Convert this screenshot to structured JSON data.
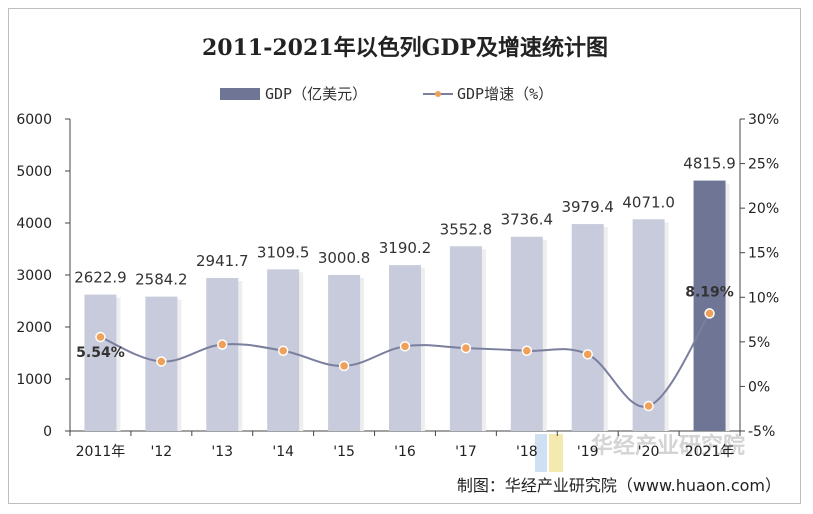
{
  "chart_data": {
    "type": "bar",
    "title": "2011-2021年以色列GDP及增速统计图",
    "categories": [
      "2011年",
      "'12",
      "'13",
      "'14",
      "'15",
      "'16",
      "'17",
      "'18",
      "'19",
      "'20",
      "2021年"
    ],
    "series": [
      {
        "name": "GDP（亿美元）",
        "type": "bar",
        "axis": "left",
        "values": [
          2622.9,
          2584.2,
          2941.7,
          3109.5,
          3000.8,
          3190.2,
          3552.8,
          3736.4,
          3979.4,
          4071.0,
          4815.9
        ],
        "labels": [
          "2622.9",
          "2584.2",
          "2941.7",
          "3109.5",
          "3000.8",
          "3190.2",
          "3552.8",
          "3736.4",
          "3979.4",
          "4071.0",
          "4815.9"
        ],
        "color": "#c8cbdc",
        "highlight_color": "#6f7594"
      },
      {
        "name": "GDP增速（%）",
        "type": "line",
        "axis": "right",
        "values": [
          5.54,
          2.8,
          4.7,
          4.0,
          2.3,
          4.5,
          4.3,
          4.0,
          3.6,
          -2.2,
          8.19
        ],
        "labels": {
          "0": "5.54%",
          "10": "8.19%"
        },
        "line_color": "#7a7f9e",
        "marker_color": "#f0a058"
      }
    ],
    "y_left": {
      "min": 0,
      "max": 6000,
      "ticks": [
        "0",
        "1000",
        "2000",
        "3000",
        "4000",
        "5000",
        "6000"
      ]
    },
    "y_right": {
      "min": -5,
      "max": 30,
      "ticks": [
        "-5%",
        "0%",
        "5%",
        "10%",
        "15%",
        "20%",
        "25%",
        "30%"
      ]
    },
    "legend": "top-center",
    "grid": false
  },
  "source": "制图：华经产业研究院（www.huaon.com）",
  "watermark": "华经产业研究院"
}
